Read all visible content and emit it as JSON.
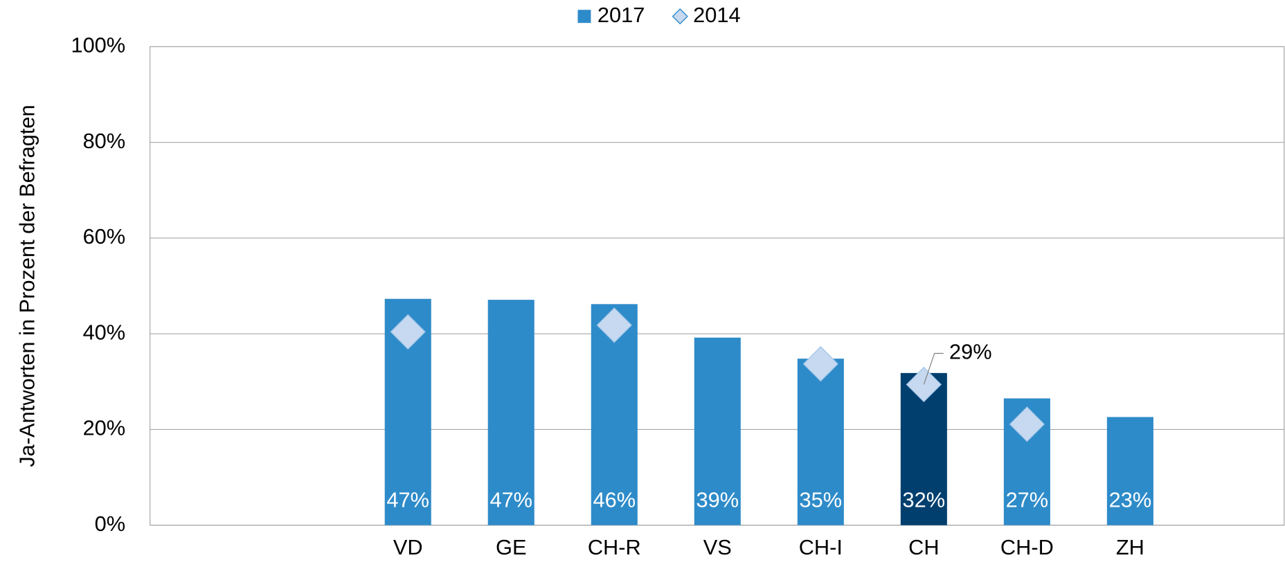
{
  "chart_data": {
    "type": "bar",
    "y_label": "Ja-Antworten in Prozent der Befragten",
    "categories": [
      null,
      null,
      "VD",
      "GE",
      "CH-R",
      "VS",
      "CH-I",
      "CH",
      "CH-D",
      "ZH",
      null
    ],
    "series": [
      {
        "name": "2017",
        "kind": "bar",
        "color": "#2e8bc9",
        "colors": [
          null,
          null,
          "#2e8bc9",
          "#2e8bc9",
          "#2e8bc9",
          "#2e8bc9",
          "#2e8bc9",
          "#003f6e",
          "#2e8bc9",
          "#2e8bc9",
          null
        ],
        "values": [
          null,
          null,
          47.3,
          47.1,
          46.2,
          39.2,
          34.8,
          31.8,
          26.5,
          22.6,
          null
        ],
        "value_labels": [
          null,
          null,
          "47%",
          "47%",
          "46%",
          "39%",
          "35%",
          "32%",
          "27%",
          "23%",
          null
        ]
      },
      {
        "name": "2014",
        "kind": "diamond",
        "color": "#c6d9f0",
        "values": [
          null,
          null,
          40.4,
          null,
          41.8,
          null,
          33.7,
          29.4,
          21.1,
          null,
          null
        ],
        "value_labels": [
          null,
          null,
          null,
          null,
          null,
          null,
          null,
          "29%",
          null,
          null,
          null
        ]
      }
    ],
    "ylim": [
      0,
      100
    ],
    "yticks": [
      {
        "value": 0,
        "label": "0%"
      },
      {
        "value": 20,
        "label": "20%"
      },
      {
        "value": 40,
        "label": "40%"
      },
      {
        "value": 60,
        "label": "60%"
      },
      {
        "value": 80,
        "label": "80%"
      },
      {
        "value": 100,
        "label": "100%"
      }
    ],
    "grid": true,
    "legend": "top"
  }
}
